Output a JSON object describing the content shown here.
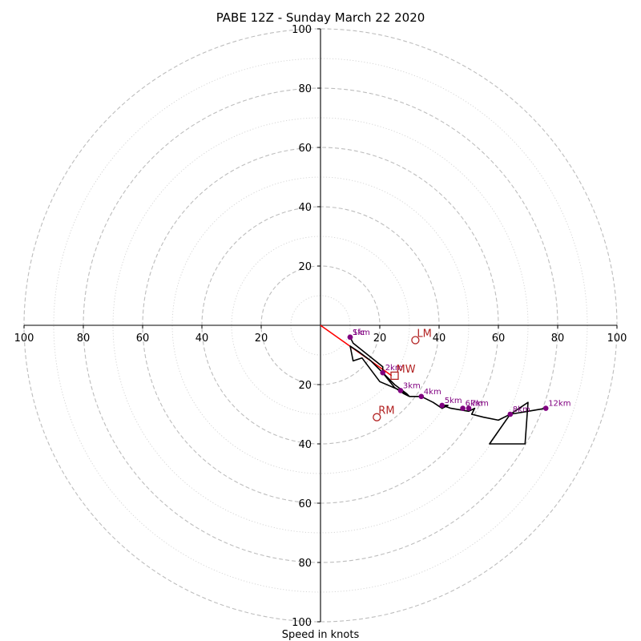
{
  "chart_data": {
    "type": "hodograph",
    "title": "PABE 12Z - Sunday March 22 2020",
    "xlabel": "Speed in knots",
    "units": "knots",
    "range": [
      -100,
      100
    ],
    "rings_major": [
      20,
      40,
      60,
      80,
      100
    ],
    "rings_minor": [
      10,
      30,
      50,
      70,
      90
    ],
    "x_ticks": [
      {
        "value": -100,
        "label": "100"
      },
      {
        "value": -80,
        "label": "80"
      },
      {
        "value": -60,
        "label": "60"
      },
      {
        "value": -40,
        "label": "40"
      },
      {
        "value": -20,
        "label": "20"
      },
      {
        "value": 20,
        "label": "20"
      },
      {
        "value": 40,
        "label": "40"
      },
      {
        "value": 60,
        "label": "60"
      },
      {
        "value": 80,
        "label": "80"
      },
      {
        "value": 100,
        "label": "100"
      }
    ],
    "y_ticks": [
      {
        "value": 100,
        "label": "100"
      },
      {
        "value": 80,
        "label": "80"
      },
      {
        "value": 60,
        "label": "60"
      },
      {
        "value": 40,
        "label": "40"
      },
      {
        "value": 20,
        "label": "20"
      },
      {
        "value": -20,
        "label": "20"
      },
      {
        "value": -40,
        "label": "40"
      },
      {
        "value": -60,
        "label": "60"
      },
      {
        "value": -80,
        "label": "80"
      },
      {
        "value": -100,
        "label": "100"
      }
    ],
    "hodograph": [
      [
        10,
        -4
      ],
      [
        11,
        -6
      ],
      [
        16,
        -10
      ],
      [
        21,
        -14
      ],
      [
        21,
        -16
      ],
      [
        23,
        -18
      ],
      [
        25,
        -20
      ],
      [
        29,
        -23
      ],
      [
        30,
        -24
      ],
      [
        27,
        -22
      ],
      [
        20,
        -19
      ],
      [
        14,
        -11
      ],
      [
        11,
        -12
      ],
      [
        10,
        -7
      ],
      [
        13,
        -9
      ],
      [
        17,
        -12
      ],
      [
        20,
        -15
      ],
      [
        21,
        -16
      ],
      [
        25,
        -21
      ],
      [
        28,
        -23
      ],
      [
        30,
        -24
      ],
      [
        34,
        -24
      ],
      [
        38,
        -26
      ],
      [
        41,
        -28
      ],
      [
        43,
        -27
      ],
      [
        41,
        -27
      ],
      [
        44,
        -28
      ],
      [
        50,
        -29
      ],
      [
        52,
        -28
      ],
      [
        51,
        -30
      ],
      [
        55,
        -31
      ],
      [
        60,
        -32
      ],
      [
        64,
        -30
      ],
      [
        70,
        -26
      ],
      [
        69,
        -40
      ],
      [
        68,
        -40
      ],
      [
        57,
        -40
      ],
      [
        64,
        -30
      ],
      [
        70,
        -29
      ],
      [
        76,
        -28
      ]
    ],
    "levels": [
      {
        "label": "Sfc",
        "u": 10,
        "v": -4
      },
      {
        "label": "1km",
        "u": 10,
        "v": -4
      },
      {
        "label": "2km",
        "u": 21,
        "v": -16
      },
      {
        "label": "3km",
        "u": 27,
        "v": -22
      },
      {
        "label": "4km",
        "u": 34,
        "v": -24
      },
      {
        "label": "5km",
        "u": 41,
        "v": -27
      },
      {
        "label": "6km",
        "u": 48,
        "v": -28
      },
      {
        "label": "7km",
        "u": 50,
        "v": -28
      },
      {
        "label": "8km",
        "u": 64,
        "v": -30
      },
      {
        "label": "12km",
        "u": 76,
        "v": -28
      }
    ],
    "mean_wind_vector": {
      "from": [
        0,
        0
      ],
      "to": [
        24,
        -17
      ],
      "color": "#ff0000"
    },
    "storm_motion": [
      {
        "label": "LM",
        "u": 32,
        "v": -5,
        "marker": "circle",
        "color": "#b22222"
      },
      {
        "label": "MW",
        "u": 25,
        "v": -17,
        "marker": "square",
        "color": "#b22222"
      },
      {
        "label": "RM",
        "u": 19,
        "v": -31,
        "marker": "circle",
        "color": "#b22222"
      }
    ]
  }
}
